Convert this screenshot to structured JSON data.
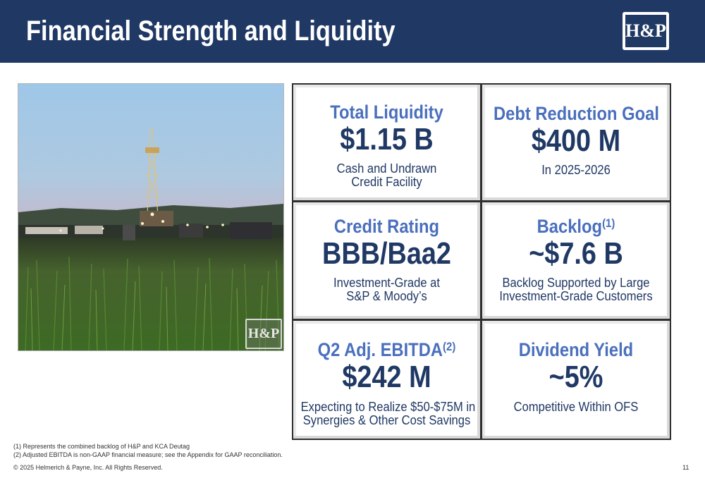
{
  "header": {
    "title": "Financial Strength and Liquidity",
    "logo_text": "H&P",
    "background_color": "#1f3864"
  },
  "photo": {
    "description_icon": "drilling-rig-photo",
    "logo_text": "H&P"
  },
  "cards": [
    {
      "title": "Total Liquidity",
      "title_sup": "",
      "value": "$1.15 B",
      "desc": [
        "Cash and Undrawn",
        "Credit Facility"
      ]
    },
    {
      "title": "Debt Reduction Goal",
      "title_sup": "",
      "value": "$400 M",
      "desc": [
        "In 2025-2026"
      ]
    },
    {
      "title": "Credit Rating",
      "title_sup": "",
      "value": "BBB/Baa2",
      "desc": [
        "Investment-Grade at",
        "S&P & Moody’s"
      ]
    },
    {
      "title": "Backlog",
      "title_sup": "(1)",
      "value": "~$7.6 B",
      "desc": [
        "Backlog Supported by Large",
        "Investment-Grade Customers"
      ]
    },
    {
      "title": "Q2 Adj. EBITDA",
      "title_sup": "(2)",
      "value": "$242 M",
      "desc": [
        "Expecting to Realize $50-$75M in",
        "Synergies & Other Cost Savings"
      ]
    },
    {
      "title": "Dividend Yield",
      "title_sup": "",
      "value": "~5%",
      "desc": [
        "Competitive Within OFS"
      ]
    }
  ],
  "colors": {
    "title_blue": "#4a6fbd",
    "value_navy": "#1f3864"
  },
  "footnotes": [
    "(1)   Represents the combined backlog of H&P and KCA Deutag",
    "(2)   Adjusted EBITDA is non-GAAP financial measure; see the Appendix for GAAP reconciliation."
  ],
  "copyright": "© 2025 Helmerich & Payne, Inc.  All Rights Reserved.",
  "page_number": "11"
}
